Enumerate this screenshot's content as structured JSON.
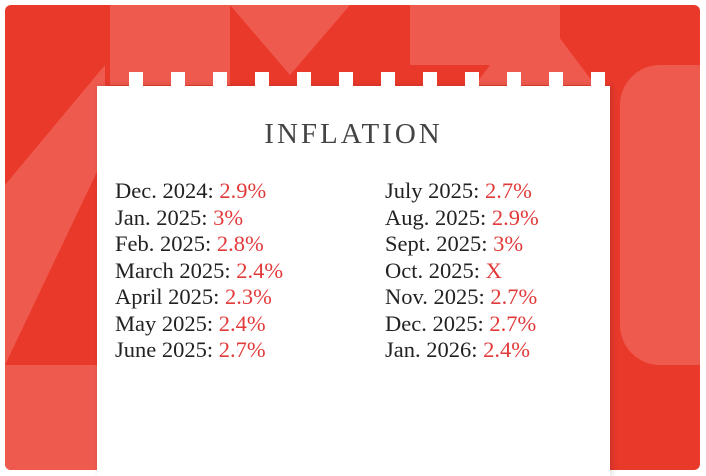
{
  "title": "INFLATION",
  "colors": {
    "background": "#e9392b",
    "background_light": "#ef5a4e",
    "value": "#e23a3a",
    "label": "#222222"
  },
  "left_column": [
    {
      "label": "Dec. 2024:",
      "value": "2.9%"
    },
    {
      "label": "Jan. 2025:",
      "value": "3%"
    },
    {
      "label": "Feb. 2025:",
      "value": "2.8%"
    },
    {
      "label": "March 2025:",
      "value": "2.4%"
    },
    {
      "label": "April 2025:",
      "value": "2.3%"
    },
    {
      "label": "May 2025:",
      "value": "2.4%"
    },
    {
      "label": "June 2025:",
      "value": "2.7%"
    }
  ],
  "right_column": [
    {
      "label": "July 2025:",
      "value": "2.7%"
    },
    {
      "label": "Aug. 2025:",
      "value": "2.9%"
    },
    {
      "label": "Sept. 2025:",
      "value": "3%"
    },
    {
      "label": "Oct. 2025:",
      "value": "X"
    },
    {
      "label": "Nov. 2025:",
      "value": "2.7%"
    },
    {
      "label": "Dec. 2025:",
      "value": "2.7%"
    },
    {
      "label": "Jan. 2026:",
      "value": "2.4%"
    }
  ]
}
